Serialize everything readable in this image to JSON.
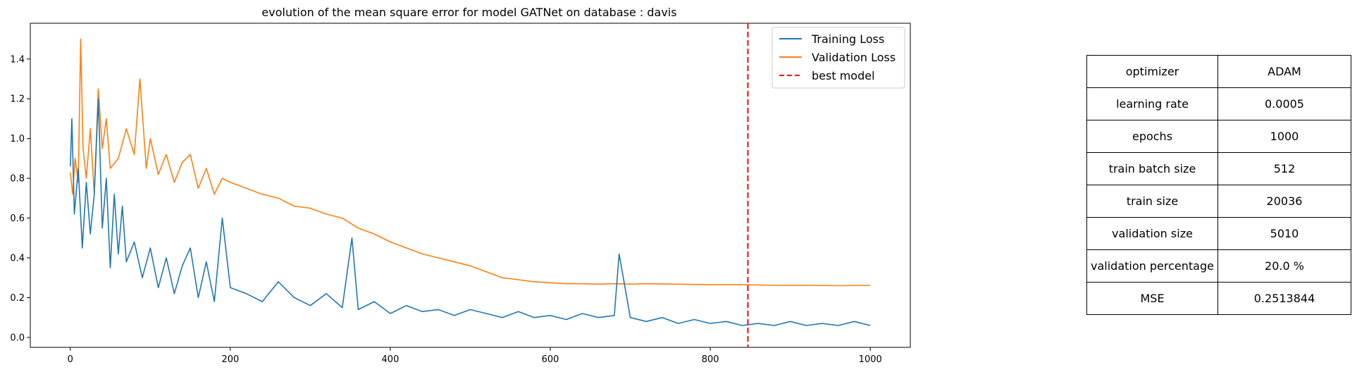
{
  "chart_data": {
    "type": "line",
    "title": "evolution of the mean square error for model GATNet on database : davis",
    "xlabel": "",
    "ylabel": "",
    "xlim": [
      -50,
      1050
    ],
    "ylim": [
      -0.05,
      1.58
    ],
    "xticks": [
      "0",
      "200",
      "400",
      "600",
      "800",
      "1000"
    ],
    "yticks": [
      "0.0",
      "0.2",
      "0.4",
      "0.6",
      "0.8",
      "1.0",
      "1.2",
      "1.4"
    ],
    "legend_position": "top-right",
    "best_model_epoch": 847,
    "series": [
      {
        "name": "Training Loss",
        "color": "#1f77b4",
        "style": "solid",
        "x": [
          0,
          2,
          5,
          10,
          15,
          20,
          25,
          30,
          35,
          40,
          45,
          50,
          55,
          60,
          65,
          70,
          80,
          90,
          100,
          110,
          120,
          130,
          140,
          150,
          160,
          170,
          180,
          190,
          200,
          220,
          240,
          260,
          280,
          300,
          320,
          340,
          352,
          360,
          380,
          400,
          420,
          440,
          460,
          480,
          500,
          520,
          540,
          560,
          580,
          600,
          620,
          640,
          660,
          680,
          686,
          700,
          720,
          740,
          760,
          780,
          800,
          820,
          840,
          860,
          880,
          900,
          920,
          940,
          960,
          980,
          1000
        ],
        "y": [
          0.86,
          1.1,
          0.62,
          0.85,
          0.45,
          0.78,
          0.52,
          0.72,
          1.2,
          0.55,
          0.8,
          0.35,
          0.72,
          0.42,
          0.66,
          0.38,
          0.48,
          0.3,
          0.45,
          0.25,
          0.4,
          0.22,
          0.36,
          0.45,
          0.2,
          0.38,
          0.18,
          0.6,
          0.25,
          0.22,
          0.18,
          0.28,
          0.2,
          0.16,
          0.22,
          0.15,
          0.5,
          0.14,
          0.18,
          0.12,
          0.16,
          0.13,
          0.14,
          0.11,
          0.14,
          0.12,
          0.1,
          0.13,
          0.1,
          0.11,
          0.09,
          0.12,
          0.1,
          0.11,
          0.42,
          0.1,
          0.08,
          0.1,
          0.07,
          0.09,
          0.07,
          0.08,
          0.06,
          0.07,
          0.06,
          0.08,
          0.06,
          0.07,
          0.06,
          0.08,
          0.06
        ]
      },
      {
        "name": "Validation Loss",
        "color": "#ff7f0e",
        "style": "solid",
        "x": [
          0,
          3,
          6,
          10,
          13,
          16,
          20,
          25,
          30,
          35,
          40,
          45,
          50,
          60,
          70,
          80,
          87,
          95,
          100,
          110,
          120,
          130,
          140,
          150,
          160,
          170,
          180,
          190,
          200,
          220,
          240,
          260,
          280,
          300,
          320,
          340,
          360,
          380,
          400,
          420,
          440,
          460,
          480,
          500,
          520,
          540,
          560,
          580,
          600,
          620,
          640,
          660,
          680,
          700,
          720,
          760,
          800,
          840,
          880,
          920,
          960,
          1000
        ],
        "y": [
          0.83,
          0.72,
          0.9,
          0.78,
          1.5,
          0.95,
          0.8,
          1.05,
          0.72,
          1.25,
          0.95,
          1.1,
          0.85,
          0.9,
          1.05,
          0.92,
          1.3,
          0.85,
          1.0,
          0.82,
          0.92,
          0.78,
          0.88,
          0.92,
          0.75,
          0.85,
          0.72,
          0.8,
          0.78,
          0.75,
          0.72,
          0.7,
          0.66,
          0.65,
          0.62,
          0.6,
          0.55,
          0.52,
          0.48,
          0.45,
          0.42,
          0.4,
          0.38,
          0.36,
          0.33,
          0.3,
          0.29,
          0.28,
          0.275,
          0.27,
          0.27,
          0.268,
          0.27,
          0.268,
          0.27,
          0.268,
          0.265,
          0.265,
          0.262,
          0.262,
          0.26,
          0.262
        ]
      }
    ],
    "legend": {
      "training": "Training Loss",
      "validation": "Validation Loss",
      "best": "best model"
    }
  },
  "table": [
    {
      "key": "optimizer",
      "value": "ADAM"
    },
    {
      "key": "learning rate",
      "value": "0.0005"
    },
    {
      "key": "epochs",
      "value": "1000"
    },
    {
      "key": "train batch size",
      "value": "512"
    },
    {
      "key": "train size",
      "value": "20036"
    },
    {
      "key": "validation size",
      "value": "5010"
    },
    {
      "key": "validation percentage",
      "value": "20.0 %"
    },
    {
      "key": "MSE",
      "value": "0.2513844"
    }
  ]
}
